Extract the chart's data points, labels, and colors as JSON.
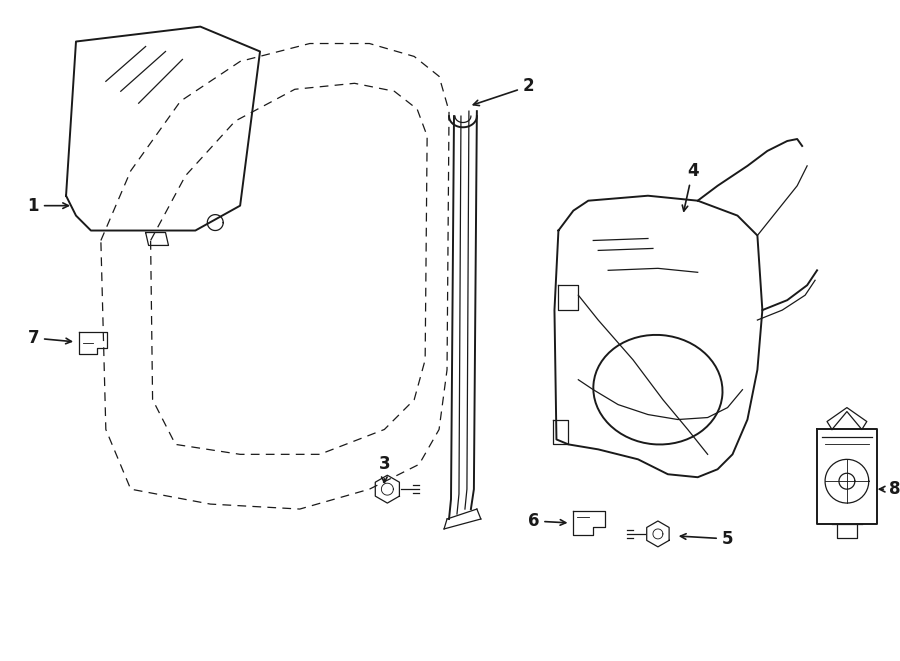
{
  "bg_color": "#ffffff",
  "line_color": "#1a1a1a",
  "fig_width": 9.0,
  "fig_height": 6.61,
  "dpi": 100,
  "label_fontsize": 12,
  "lw_main": 1.4,
  "lw_thin": 0.9,
  "lw_dash": 0.9
}
